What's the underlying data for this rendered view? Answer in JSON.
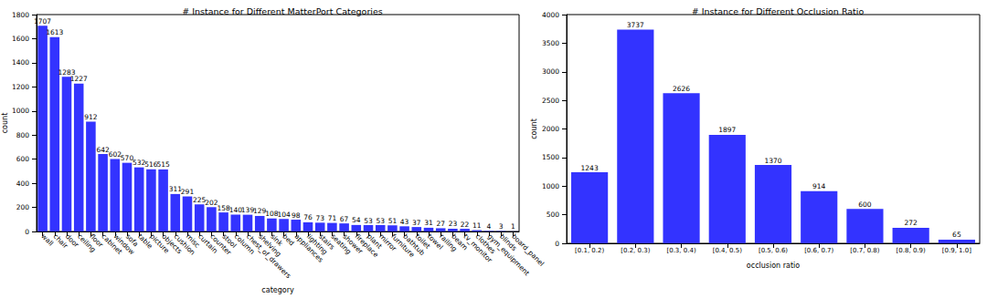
{
  "chart_data": [
    {
      "type": "bar",
      "title": "# Instance for Different MatterPort Categories",
      "x_label": "category",
      "y_label": "count",
      "categories": [
        "wall",
        "chair",
        "door",
        "ceiling",
        "floor",
        "cabinet",
        "window",
        "sofa",
        "table",
        "picture",
        "objects",
        "cushion",
        "misc",
        "curtain",
        "counter",
        "stool",
        "column",
        "chest_of_drawers",
        "shelving",
        "sink",
        "bed",
        "appliances",
        "lighting",
        "stairs",
        "seating",
        "shower",
        "fireplace",
        "plant",
        "mirror",
        "furniture",
        "bathtub",
        "toilet",
        "towel",
        "railing",
        "beam",
        "tv_monitor",
        "clothes",
        "gym_equipment",
        "blinds",
        "board_panel"
      ],
      "values": [
        1707,
        1613,
        1283,
        1227,
        912,
        642,
        602,
        570,
        532,
        516,
        515,
        311,
        291,
        225,
        202,
        158,
        140,
        139,
        129,
        108,
        104,
        98,
        76,
        73,
        71,
        67,
        54,
        53,
        53,
        51,
        43,
        37,
        31,
        27,
        23,
        22,
        11,
        4,
        3,
        1
      ],
      "color": "#3333ff",
      "ylim": [
        0,
        1800
      ],
      "yticks": [
        0,
        200,
        400,
        600,
        800,
        1000,
        1200,
        1400,
        1600,
        1800
      ],
      "grid": false,
      "data_labels": true
    },
    {
      "type": "bar",
      "title": "# Instance for Different Occlusion Ratio",
      "x_label": "occlusion ratio",
      "y_label": "count",
      "categories": [
        "[0.1, 0.2)",
        "[0.2, 0.3)",
        "[0.3, 0.4)",
        "[0.4, 0.5)",
        "[0.5, 0.6)",
        "[0.6, 0.7)",
        "[0.7, 0.8)",
        "[0.8, 0.9)",
        "[0.9, 1.0]"
      ],
      "values": [
        1243,
        3737,
        2626,
        1897,
        1370,
        914,
        600,
        272,
        65
      ],
      "color": "#3333ff",
      "ylim": [
        0,
        4000
      ],
      "yticks": [
        0,
        500,
        1000,
        1500,
        2000,
        2500,
        3000,
        3500,
        4000
      ],
      "grid": false,
      "data_labels": true
    }
  ]
}
